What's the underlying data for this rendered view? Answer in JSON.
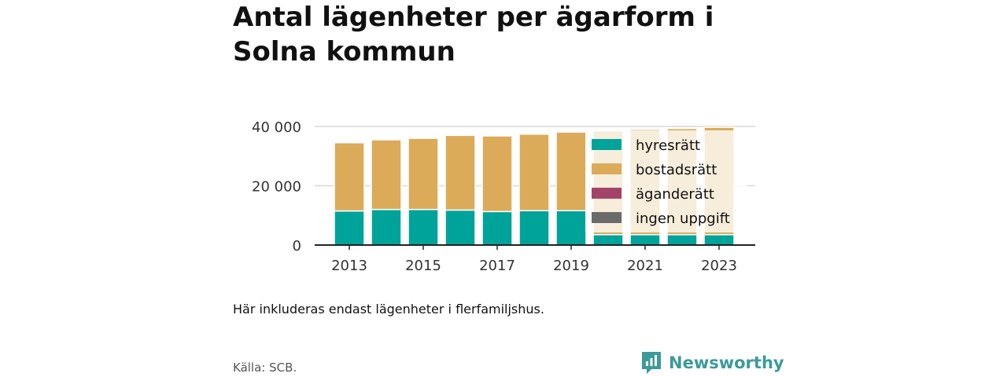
{
  "title": "Antal lägenheter per ägarform i Solna kommun",
  "note": "Här inkluderas endast lägenheter i flerfamiljshus.",
  "source": "Källa: SCB.",
  "logo": {
    "text": "Newsworthy",
    "color": "#3d9a9a"
  },
  "chart_data": {
    "type": "bar",
    "stacked": true,
    "categories": [
      "2013",
      "2014",
      "2015",
      "2016",
      "2017",
      "2018",
      "2019",
      "2020",
      "2021",
      "2022",
      "2023"
    ],
    "x_tick_labels": [
      "2013",
      "2015",
      "2017",
      "2019",
      "2021",
      "2023"
    ],
    "ylim": [
      0,
      40000
    ],
    "y_ticks": [
      0,
      20000,
      40000
    ],
    "y_tick_labels": [
      "0",
      "20 000",
      "40 000"
    ],
    "grid": true,
    "legend_position": "top-right",
    "series": [
      {
        "name": "hyresrätt",
        "color": "#00a39a",
        "values": [
          11500,
          12000,
          12000,
          11800,
          11300,
          11600,
          11600,
          3500,
          3500,
          3500,
          3500
        ]
      },
      {
        "name": "bostadsrätt",
        "color": "#dbab5a",
        "values": [
          23000,
          23500,
          24000,
          25200,
          25500,
          25800,
          26500,
          35000,
          35500,
          35800,
          36200
        ]
      },
      {
        "name": "äganderätt",
        "color": "#a3436a",
        "values": [
          0,
          0,
          0,
          0,
          0,
          0,
          0,
          0,
          0,
          0,
          0
        ]
      },
      {
        "name": "ingen uppgift",
        "color": "#6b6b6b",
        "values": [
          0,
          0,
          0,
          0,
          0,
          0,
          0,
          0,
          0,
          0,
          0
        ]
      }
    ]
  }
}
